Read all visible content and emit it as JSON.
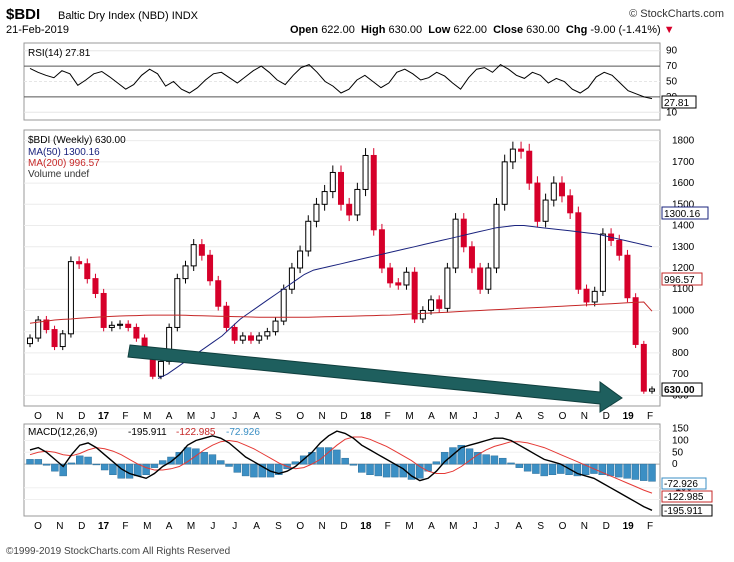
{
  "header": {
    "symbol": "$BDI",
    "name": "Baltic Dry Index (NBD)",
    "exchange": "INDX",
    "date": "21-Feb-2019",
    "logo": "© StockCharts.com",
    "open_label": "Open",
    "open": "622.00",
    "high_label": "High",
    "high": "630.00",
    "low_label": "Low",
    "low": "622.00",
    "close_label": "Close",
    "close": "630.00",
    "chg_label": "Chg",
    "chg": "-9.00 (-1.41%)"
  },
  "footer": {
    "copyright": "©1999-2019 StockCharts.com All Rights Reserved"
  },
  "colors": {
    "up": "#000000",
    "down": "#d6002a",
    "ma50": "#1a237e",
    "ma200": "#c62828",
    "arrow": "#1e5f5e",
    "hist": "#3b8fc4",
    "signal": "#e53935"
  },
  "chart_data": [
    {
      "type": "line",
      "title": "RSI(14) 27.81",
      "ylim": [
        0,
        100
      ],
      "ticks": [
        90,
        70,
        50,
        30,
        10
      ],
      "current_label": "27.81",
      "series": [
        {
          "name": "RSI(14)",
          "values": [
            67,
            62,
            58,
            55,
            64,
            60,
            45,
            52,
            60,
            63,
            56,
            48,
            40,
            46,
            58,
            66,
            60,
            44,
            50,
            40,
            35,
            42,
            52,
            60,
            62,
            55,
            48,
            56,
            64,
            70,
            62,
            52,
            46,
            58,
            68,
            72,
            62,
            50,
            44,
            35,
            40,
            52,
            58,
            50,
            42,
            48,
            62,
            66,
            60,
            52,
            55,
            62,
            57,
            48,
            40,
            55,
            66,
            68,
            62,
            72,
            66,
            58,
            54,
            62,
            58,
            48,
            54,
            50,
            40,
            35,
            42,
            56,
            62,
            58,
            48,
            38,
            34,
            30,
            27.81
          ]
        }
      ]
    },
    {
      "type": "candlestick",
      "title": "$BDI (Weekly) 630.00",
      "ylim": [
        550,
        1850
      ],
      "yticks": [
        1800,
        1700,
        1600,
        1500,
        1400,
        1300,
        1200,
        1100,
        1000,
        900,
        800,
        700,
        600
      ],
      "xticks": [
        "O",
        "N",
        "D",
        "17",
        "F",
        "M",
        "A",
        "M",
        "J",
        "J",
        "A",
        "S",
        "O",
        "N",
        "D",
        "18",
        "F",
        "M",
        "A",
        "M",
        "J",
        "J",
        "A",
        "S",
        "O",
        "N",
        "D",
        "19",
        "F"
      ],
      "legend": [
        "$BDI (Weekly) 630.00",
        "MA(50) 1300.16",
        "MA(200) 996.57",
        "Volume undef"
      ],
      "ma50_label": "1300.16",
      "ma200_label": "996.57",
      "close_label": "630.00",
      "close": [
        870,
        955,
        910,
        830,
        890,
        1230,
        1220,
        1150,
        1080,
        920,
        930,
        935,
        920,
        870,
        810,
        690,
        760,
        920,
        1150,
        1210,
        1310,
        1260,
        1140,
        1020,
        920,
        860,
        880,
        860,
        880,
        900,
        950,
        1100,
        1200,
        1280,
        1420,
        1500,
        1560,
        1650,
        1500,
        1450,
        1570,
        1730,
        1380,
        1200,
        1130,
        1120,
        1180,
        960,
        1000,
        1050,
        1010,
        1200,
        1430,
        1300,
        1200,
        1100,
        1200,
        1500,
        1700,
        1760,
        1750,
        1600,
        1420,
        1520,
        1600,
        1540,
        1460,
        1100,
        1040,
        1090,
        1360,
        1330,
        1260,
        1060,
        840,
        620,
        630
      ],
      "ma50": [
        null,
        null,
        null,
        null,
        null,
        null,
        null,
        null,
        null,
        null,
        null,
        null,
        null,
        null,
        680,
        700,
        730,
        760,
        790,
        820,
        850,
        880,
        920,
        960,
        990,
        1020,
        1050,
        1080,
        1110,
        1140,
        1170,
        1190,
        1200,
        1210,
        1220,
        1230,
        1240,
        1250,
        1260,
        1270,
        1280,
        1290,
        1300,
        1310,
        1320,
        1330,
        1340,
        1350,
        1360,
        1370,
        1380,
        1390,
        1395,
        1400,
        1400,
        1395,
        1390,
        1385,
        1380,
        1375,
        1370,
        1365,
        1360,
        1350,
        1340,
        1330,
        1320,
        1310,
        1300.16
      ],
      "ma200": [
        940,
        945,
        950,
        955,
        958,
        960,
        963,
        966,
        968,
        970,
        972,
        974,
        975,
        976,
        977,
        978,
        978,
        978,
        978,
        977,
        976,
        975,
        974,
        973,
        972,
        971,
        970,
        969,
        968,
        968,
        968,
        968,
        968,
        968,
        968,
        969,
        970,
        971,
        972,
        973,
        974,
        975,
        976,
        977,
        978,
        980,
        982,
        984,
        986,
        988,
        990,
        992,
        994,
        996,
        998,
        1000,
        1002,
        1004,
        1006,
        1008,
        1010,
        1012,
        1014,
        1016,
        1018,
        1020,
        1022,
        1024,
        1026,
        1028,
        1030,
        1032,
        1034,
        1036,
        1038,
        1040,
        996.57
      ]
    },
    {
      "type": "line",
      "title": "MACD(12,26,9)",
      "ylim": [
        -220,
        170
      ],
      "yticks": [
        150,
        100,
        50,
        0,
        -100,
        -150
      ],
      "macd_label": "-195.911",
      "signal_label": "-122.985",
      "hist_label": "-72.926",
      "xticks": [
        "O",
        "N",
        "D",
        "17",
        "F",
        "M",
        "A",
        "M",
        "J",
        "J",
        "A",
        "S",
        "O",
        "N",
        "D",
        "18",
        "F",
        "M",
        "A",
        "M",
        "J",
        "J",
        "A",
        "S",
        "O",
        "N",
        "D",
        "19",
        "F"
      ],
      "series": [
        {
          "name": "MACD(12,26,9)",
          "value": "-195.911",
          "values": [
            60,
            70,
            50,
            20,
            -10,
            40,
            80,
            90,
            70,
            40,
            10,
            -20,
            -40,
            -50,
            -60,
            -40,
            -10,
            10,
            40,
            80,
            100,
            110,
            120,
            110,
            90,
            60,
            30,
            10,
            -10,
            -30,
            -40,
            -30,
            -10,
            20,
            50,
            90,
            120,
            140,
            130,
            110,
            80,
            60,
            40,
            20,
            0,
            -20,
            -50,
            -70,
            -60,
            -30,
            10,
            40,
            70,
            80,
            90,
            100,
            110,
            110,
            100,
            80,
            60,
            40,
            20,
            10,
            0,
            -20,
            -40,
            -50,
            -60,
            -80,
            -100,
            -120,
            -140,
            -160,
            -180,
            -195.911
          ]
        },
        {
          "name": "Signal",
          "value": "-122.985",
          "values": [
            40,
            50,
            55,
            50,
            40,
            35,
            45,
            60,
            70,
            65,
            55,
            40,
            20,
            0,
            -15,
            -25,
            -25,
            -20,
            -10,
            10,
            35,
            60,
            80,
            95,
            100,
            95,
            80,
            65,
            45,
            25,
            5,
            -10,
            -20,
            -15,
            0,
            20,
            50,
            80,
            105,
            115,
            115,
            105,
            90,
            75,
            55,
            35,
            15,
            -10,
            -30,
            -40,
            -40,
            -30,
            -10,
            15,
            40,
            60,
            75,
            85,
            95,
            95,
            90,
            80,
            70,
            55,
            40,
            25,
            10,
            -5,
            -20,
            -35,
            -50,
            -65,
            -80,
            -95,
            -110,
            -122.985
          ]
        },
        {
          "name": "Histogram",
          "value": "-72.926",
          "values": [
            20,
            20,
            -5,
            -30,
            -50,
            5,
            35,
            30,
            0,
            -25,
            -45,
            -60,
            -60,
            -50,
            -45,
            -15,
            15,
            30,
            50,
            70,
            65,
            50,
            40,
            15,
            -10,
            -35,
            -50,
            -55,
            -55,
            -55,
            -45,
            -20,
            10,
            35,
            50,
            70,
            70,
            60,
            25,
            -5,
            -35,
            -45,
            -50,
            -55,
            -55,
            -55,
            -65,
            -60,
            -30,
            10,
            50,
            70,
            80,
            65,
            50,
            40,
            35,
            25,
            5,
            -15,
            -30,
            -40,
            -50,
            -45,
            -40,
            -45,
            -50,
            -45,
            -40,
            -45,
            -50,
            -55,
            -60,
            -65,
            -70,
            -72.926
          ]
        }
      ]
    }
  ]
}
